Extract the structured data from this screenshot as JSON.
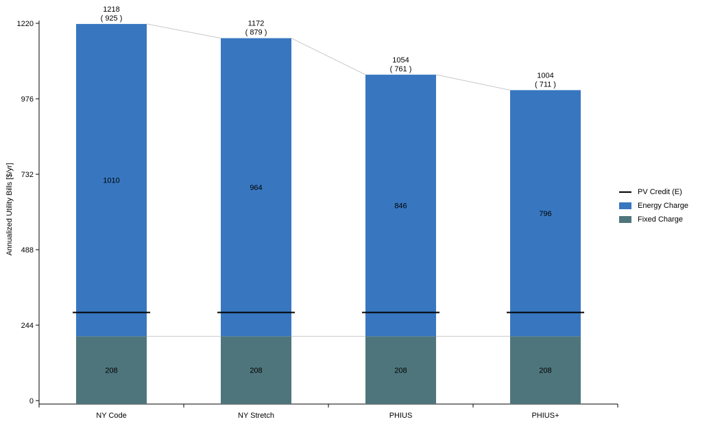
{
  "chart_data": {
    "type": "bar",
    "stacked": true,
    "categories": [
      "NY Code",
      "NY Stretch",
      "PHIUS",
      "PHIUS+"
    ],
    "series": [
      {
        "name": "Fixed Charge",
        "values": [
          208,
          208,
          208,
          208
        ],
        "color": "#4E757B"
      },
      {
        "name": "Energy Charge",
        "values": [
          1010,
          964,
          846,
          796
        ],
        "color": "#3877C0"
      }
    ],
    "pv_credit": {
      "name": "PV Credit (E)",
      "values": [
        285,
        285,
        285,
        285
      ],
      "color": "#000000"
    },
    "totals": [
      1218,
      1172,
      1054,
      1004
    ],
    "net_totals": [
      "( 925 )",
      "( 879 )",
      "( 761 )",
      "( 711 )"
    ],
    "ylabel": "Annualized Utility Bills [$/yr]",
    "xlabel": "",
    "ylim": [
      0,
      1220
    ],
    "yticks": [
      0,
      244,
      488,
      732,
      976,
      1220
    ],
    "grid": false,
    "legend_position": "right"
  },
  "legend": {
    "items": [
      {
        "label": "PV Credit (E)",
        "kind": "line",
        "color": "#000000"
      },
      {
        "label": "Energy Charge",
        "kind": "box",
        "color": "#3877C0"
      },
      {
        "label": "Fixed Charge",
        "kind": "box",
        "color": "#4E757B"
      }
    ]
  }
}
